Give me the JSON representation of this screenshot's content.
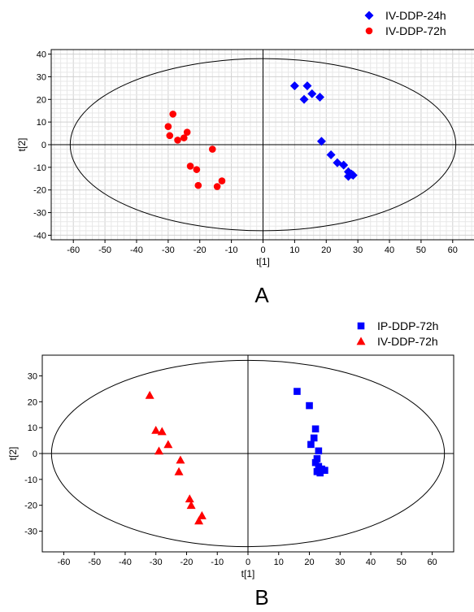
{
  "panels": [
    {
      "label": "A",
      "legend": [
        {
          "name": "IV-DDP-24h",
          "color": "#0000ff",
          "marker": "diamond"
        },
        {
          "name": "IV-DDP-72h",
          "color": "#ff0000",
          "marker": "circle"
        }
      ]
    },
    {
      "label": "B",
      "legend": [
        {
          "name": "IP-DDP-72h",
          "color": "#0000ff",
          "marker": "square"
        },
        {
          "name": "IV-DDP-72h",
          "color": "#ff0000",
          "marker": "triangle"
        }
      ]
    }
  ],
  "chart_data": [
    {
      "type": "scatter",
      "title": "",
      "xlabel": "t[1]",
      "ylabel": "t[2]",
      "xlim": [
        -67,
        67
      ],
      "ylim": [
        -42,
        42
      ],
      "xticks": [
        -60,
        -50,
        -40,
        -30,
        -20,
        -10,
        0,
        10,
        20,
        30,
        40,
        50,
        60
      ],
      "yticks": [
        -40,
        -30,
        -20,
        -10,
        0,
        10,
        20,
        30,
        40
      ],
      "grid": true,
      "legend_position": "top-right",
      "ellipse": {
        "center": [
          0,
          0
        ],
        "rx": 61,
        "ry": 38
      },
      "series": [
        {
          "name": "IV-DDP-24h",
          "color": "#0000ff",
          "marker": "diamond",
          "points": [
            [
              10,
              26
            ],
            [
              14,
              26
            ],
            [
              15.5,
              22.5
            ],
            [
              13,
              20
            ],
            [
              18,
              21
            ],
            [
              18.5,
              1.5
            ],
            [
              21.5,
              -4.5
            ],
            [
              23.5,
              -8
            ],
            [
              25.5,
              -9
            ],
            [
              27,
              -12
            ],
            [
              28,
              -13
            ],
            [
              27,
              -14
            ],
            [
              28.5,
              -13.5
            ]
          ]
        },
        {
          "name": "IV-DDP-72h",
          "color": "#ff0000",
          "marker": "circle",
          "points": [
            [
              -28.5,
              13.5
            ],
            [
              -30,
              8
            ],
            [
              -29.5,
              4
            ],
            [
              -27,
              2
            ],
            [
              -25,
              3
            ],
            [
              -24,
              5.5
            ],
            [
              -23,
              -9.5
            ],
            [
              -21,
              -11
            ],
            [
              -20.5,
              -18
            ],
            [
              -16,
              -2
            ],
            [
              -14.5,
              -18.5
            ],
            [
              -13,
              -16
            ]
          ]
        }
      ]
    },
    {
      "type": "scatter",
      "title": "",
      "xlabel": "t[1]",
      "ylabel": "t[2]",
      "xlim": [
        -67,
        67
      ],
      "ylim": [
        -38,
        38
      ],
      "xticks": [
        -60,
        -50,
        -40,
        -30,
        -20,
        -10,
        0,
        10,
        20,
        30,
        40,
        50,
        60
      ],
      "yticks": [
        -30,
        -20,
        -10,
        0,
        10,
        20,
        30
      ],
      "grid": false,
      "legend_position": "top-right",
      "ellipse": {
        "center": [
          0,
          0
        ],
        "rx": 64,
        "ry": 36
      },
      "series": [
        {
          "name": "IP-DDP-72h",
          "color": "#0000ff",
          "marker": "square",
          "points": [
            [
              16,
              24
            ],
            [
              20,
              18.5
            ],
            [
              22,
              9.5
            ],
            [
              21.5,
              6
            ],
            [
              20.5,
              3.5
            ],
            [
              23,
              1
            ],
            [
              22.5,
              -2
            ],
            [
              22,
              -3.5
            ],
            [
              23,
              -5
            ],
            [
              24,
              -6
            ],
            [
              25,
              -6.5
            ],
            [
              22.5,
              -7
            ],
            [
              23.5,
              -7.5
            ]
          ]
        },
        {
          "name": "IV-DDP-72h",
          "color": "#ff0000",
          "marker": "triangle",
          "points": [
            [
              -32,
              22.5
            ],
            [
              -30,
              9
            ],
            [
              -28,
              8.5
            ],
            [
              -26,
              3.5
            ],
            [
              -29,
              1
            ],
            [
              -22,
              -2.5
            ],
            [
              -22.5,
              -7
            ],
            [
              -19,
              -17.5
            ],
            [
              -18.5,
              -20
            ],
            [
              -15,
              -24
            ],
            [
              -16,
              -26
            ]
          ]
        }
      ]
    }
  ]
}
